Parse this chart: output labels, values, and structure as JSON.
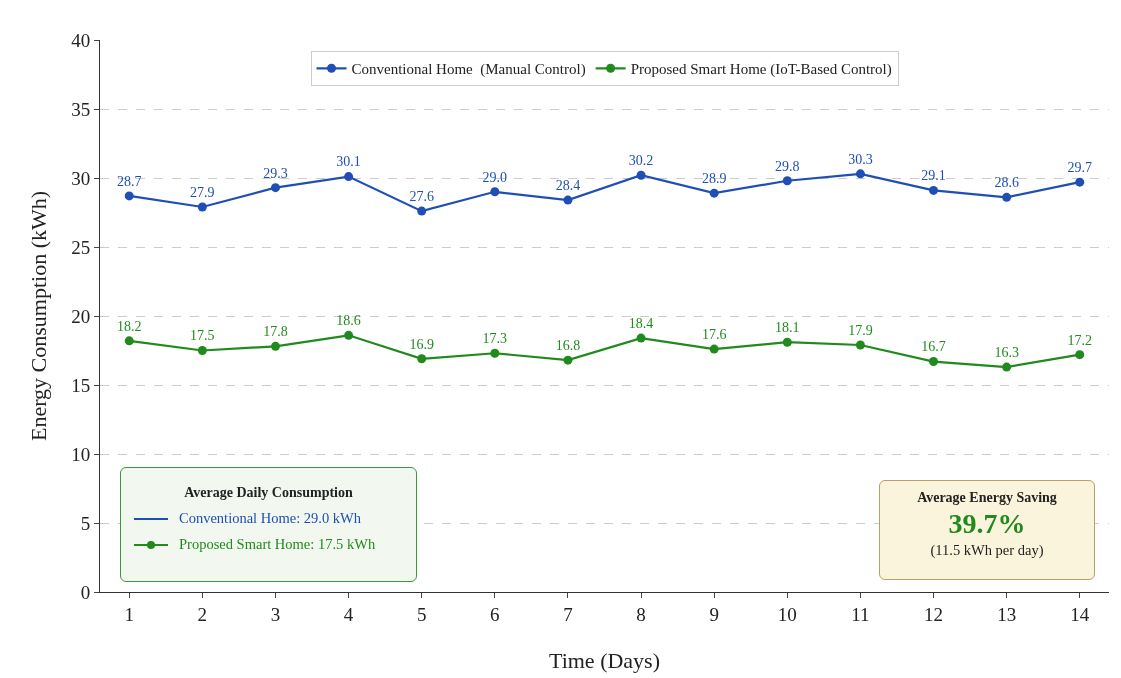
{
  "chart_data": {
    "type": "line",
    "xlabel": "Time (Days)",
    "ylabel": "Energy Consumption (kWh)",
    "x": [
      1,
      2,
      3,
      4,
      5,
      6,
      7,
      8,
      9,
      10,
      11,
      12,
      13,
      14
    ],
    "series": [
      {
        "name": "Conventional Home  (Manual Control)",
        "color": "#1f4fb4",
        "values": [
          28.7,
          27.9,
          29.3,
          30.1,
          27.6,
          29.0,
          28.4,
          30.2,
          28.9,
          29.8,
          30.3,
          29.1,
          28.6,
          29.7
        ],
        "value_labels": [
          "28.7",
          "27.9",
          "29.3",
          "30.1",
          "27.6",
          "29.0",
          "28.4",
          "30.2",
          "28.9",
          "29.8",
          "30.3",
          "29.1",
          "28.6",
          "29.7"
        ]
      },
      {
        "name": "Proposed Smart Home (IoT-Based Control)",
        "color": "#218a1c",
        "values": [
          18.2,
          17.5,
          17.8,
          18.6,
          16.9,
          17.3,
          16.8,
          18.4,
          17.6,
          18.1,
          17.9,
          16.7,
          16.3,
          17.2
        ],
        "value_labels": [
          "18.2",
          "17.5",
          "17.8",
          "18.6",
          "16.9",
          "17.3",
          "16.8",
          "18.4",
          "17.6",
          "18.1",
          "17.9",
          "16.7",
          "16.3",
          "17.2"
        ]
      }
    ],
    "xlim": [
      0.6,
      14.4
    ],
    "xticks": [
      1,
      2,
      3,
      4,
      5,
      6,
      7,
      8,
      9,
      10,
      11,
      12,
      13,
      14
    ],
    "ylim": [
      0,
      40
    ],
    "yticks": [
      0,
      5,
      10,
      15,
      20,
      25,
      30,
      35,
      40
    ],
    "grid": "y",
    "legend": "top",
    "marker": "circle",
    "line_style": "solid",
    "annotations": [
      "Average Daily Consumption",
      "Conventional Home:  29.0 kWh",
      "Proposed Smart Home: 17.5 kWh",
      "Average Energy Saving",
      "39.7%",
      "(11.5 kWh per day)"
    ]
  }
}
